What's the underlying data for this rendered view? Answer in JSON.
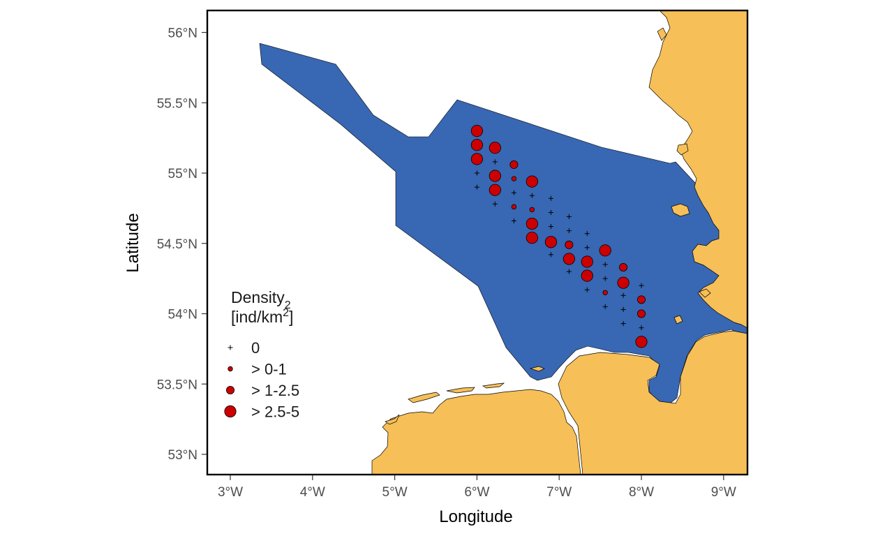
{
  "colors": {
    "water": "#3867b3",
    "land": "#f6bf57",
    "point": "#cc0000",
    "frame": "#000000",
    "background": "#ffffff"
  },
  "axes": {
    "x_title": "Longitude",
    "y_title": "Latitude",
    "x_ticks": [
      {
        "value": 3.0,
        "label": "3°W"
      },
      {
        "value": 4.0,
        "label": "4°W"
      },
      {
        "value": 5.0,
        "label": "5°W"
      },
      {
        "value": 6.0,
        "label": "6°W"
      },
      {
        "value": 7.0,
        "label": "7°W"
      },
      {
        "value": 8.0,
        "label": "8°W"
      },
      {
        "value": 9.0,
        "label": "9°W"
      }
    ],
    "y_ticks": [
      {
        "value": 53.0,
        "label": "53°N"
      },
      {
        "value": 53.5,
        "label": "53.5°N"
      },
      {
        "value": 54.0,
        "label": "54°N"
      },
      {
        "value": 54.5,
        "label": "54.5°N"
      },
      {
        "value": 55.0,
        "label": "55°N"
      },
      {
        "value": 55.5,
        "label": "55.5°N"
      },
      {
        "value": 56.0,
        "label": "56°N"
      }
    ],
    "x_range": [
      2.72,
      9.28
    ],
    "y_range": [
      52.84,
      56.17
    ]
  },
  "legend": {
    "title_line1": "Density",
    "title_line2": "[ind/km",
    "title_sub": "2",
    "title_sup": "2",
    "title_close": "]",
    "placement": "bottom-left inside",
    "classes": [
      {
        "key": "zero",
        "label": "0",
        "symbol": "plus"
      },
      {
        "key": "low",
        "label": "> 0-1",
        "symbol": "circle-small"
      },
      {
        "key": "mid",
        "label": "> 1-2.5",
        "symbol": "circle-medium"
      },
      {
        "key": "high",
        "label": "> 2.5-5",
        "symbol": "circle-large"
      }
    ]
  },
  "chart_data": {
    "type": "scatter",
    "x_unit": "degrees longitude (axis labelled °W)",
    "y_unit": "degrees latitude (°N)",
    "points": [
      {
        "lon": 6.0,
        "lat": 55.3,
        "class": "high"
      },
      {
        "lon": 6.0,
        "lat": 55.2,
        "class": "high"
      },
      {
        "lon": 6.0,
        "lat": 55.1,
        "class": "high"
      },
      {
        "lon": 6.0,
        "lat": 55.0,
        "class": "zero"
      },
      {
        "lon": 6.0,
        "lat": 54.9,
        "class": "zero"
      },
      {
        "lon": 6.22,
        "lat": 55.18,
        "class": "high"
      },
      {
        "lon": 6.22,
        "lat": 55.08,
        "class": "zero"
      },
      {
        "lon": 6.22,
        "lat": 54.98,
        "class": "high"
      },
      {
        "lon": 6.22,
        "lat": 54.88,
        "class": "high"
      },
      {
        "lon": 6.22,
        "lat": 54.78,
        "class": "zero"
      },
      {
        "lon": 6.45,
        "lat": 55.06,
        "class": "mid"
      },
      {
        "lon": 6.45,
        "lat": 54.96,
        "class": "low"
      },
      {
        "lon": 6.45,
        "lat": 54.86,
        "class": "zero"
      },
      {
        "lon": 6.45,
        "lat": 54.76,
        "class": "low"
      },
      {
        "lon": 6.45,
        "lat": 54.66,
        "class": "zero"
      },
      {
        "lon": 6.67,
        "lat": 54.94,
        "class": "high"
      },
      {
        "lon": 6.67,
        "lat": 54.84,
        "class": "zero"
      },
      {
        "lon": 6.67,
        "lat": 54.74,
        "class": "low"
      },
      {
        "lon": 6.67,
        "lat": 54.64,
        "class": "high"
      },
      {
        "lon": 6.67,
        "lat": 54.54,
        "class": "high"
      },
      {
        "lon": 6.9,
        "lat": 54.82,
        "class": "zero"
      },
      {
        "lon": 6.9,
        "lat": 54.72,
        "class": "zero"
      },
      {
        "lon": 6.9,
        "lat": 54.62,
        "class": "zero"
      },
      {
        "lon": 6.9,
        "lat": 54.51,
        "class": "high"
      },
      {
        "lon": 6.9,
        "lat": 54.42,
        "class": "zero"
      },
      {
        "lon": 7.12,
        "lat": 54.69,
        "class": "zero"
      },
      {
        "lon": 7.12,
        "lat": 54.59,
        "class": "zero"
      },
      {
        "lon": 7.12,
        "lat": 54.49,
        "class": "mid"
      },
      {
        "lon": 7.12,
        "lat": 54.39,
        "class": "high"
      },
      {
        "lon": 7.12,
        "lat": 54.3,
        "class": "zero"
      },
      {
        "lon": 7.34,
        "lat": 54.57,
        "class": "zero"
      },
      {
        "lon": 7.34,
        "lat": 54.47,
        "class": "zero"
      },
      {
        "lon": 7.34,
        "lat": 54.37,
        "class": "high"
      },
      {
        "lon": 7.34,
        "lat": 54.27,
        "class": "high"
      },
      {
        "lon": 7.34,
        "lat": 54.17,
        "class": "zero"
      },
      {
        "lon": 7.56,
        "lat": 54.45,
        "class": "high"
      },
      {
        "lon": 7.56,
        "lat": 54.35,
        "class": "zero"
      },
      {
        "lon": 7.56,
        "lat": 54.25,
        "class": "zero"
      },
      {
        "lon": 7.56,
        "lat": 54.15,
        "class": "low"
      },
      {
        "lon": 7.56,
        "lat": 54.05,
        "class": "zero"
      },
      {
        "lon": 7.78,
        "lat": 54.33,
        "class": "mid"
      },
      {
        "lon": 7.78,
        "lat": 54.22,
        "class": "high"
      },
      {
        "lon": 7.78,
        "lat": 54.13,
        "class": "zero"
      },
      {
        "lon": 7.78,
        "lat": 54.03,
        "class": "zero"
      },
      {
        "lon": 7.78,
        "lat": 53.93,
        "class": "zero"
      },
      {
        "lon": 8.0,
        "lat": 54.2,
        "class": "zero"
      },
      {
        "lon": 8.0,
        "lat": 54.1,
        "class": "mid"
      },
      {
        "lon": 8.0,
        "lat": 54.0,
        "class": "mid"
      },
      {
        "lon": 8.0,
        "lat": 53.9,
        "class": "zero"
      },
      {
        "lon": 8.0,
        "lat": 53.8,
        "class": "high"
      }
    ]
  }
}
